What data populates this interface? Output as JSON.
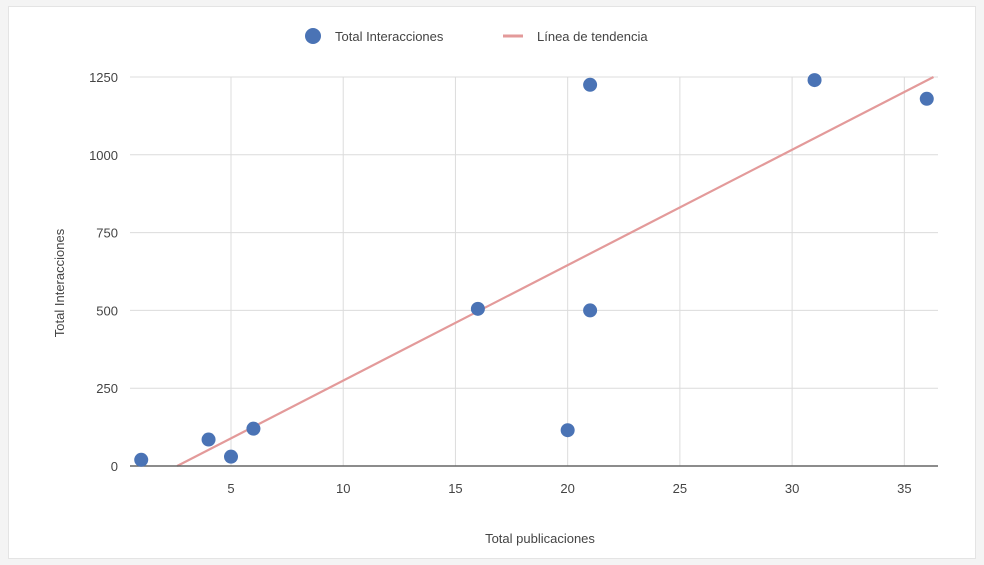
{
  "chart_data": {
    "type": "scatter",
    "xlabel": "Total publicaciones",
    "ylabel": "Total Interacciones",
    "xlim": [
      0.5,
      36.5
    ],
    "ylim": [
      0,
      1250
    ],
    "x_ticks": [
      5,
      10,
      15,
      20,
      25,
      30,
      35
    ],
    "y_ticks": [
      0,
      250,
      500,
      750,
      1000,
      1250
    ],
    "grid": true,
    "legend_position": "top",
    "series": [
      {
        "name": "Total Interacciones",
        "kind": "scatter",
        "color": "#4a73b5",
        "points": [
          {
            "x": 1,
            "y": 20
          },
          {
            "x": 4,
            "y": 85
          },
          {
            "x": 5,
            "y": 30
          },
          {
            "x": 6,
            "y": 120
          },
          {
            "x": 16,
            "y": 505
          },
          {
            "x": 20,
            "y": 115
          },
          {
            "x": 21,
            "y": 500
          },
          {
            "x": 21,
            "y": 1225
          },
          {
            "x": 31,
            "y": 1240
          },
          {
            "x": 36,
            "y": 1180
          }
        ]
      },
      {
        "name": "Línea de tendencia",
        "kind": "line",
        "color": "#e39a9a",
        "points": [
          {
            "x": 2.6,
            "y": 0
          },
          {
            "x": 36.3,
            "y": 1250
          }
        ]
      }
    ]
  },
  "colors": {
    "grid": "#dcdcdc",
    "axis": "#666666",
    "background": "#ffffff"
  }
}
